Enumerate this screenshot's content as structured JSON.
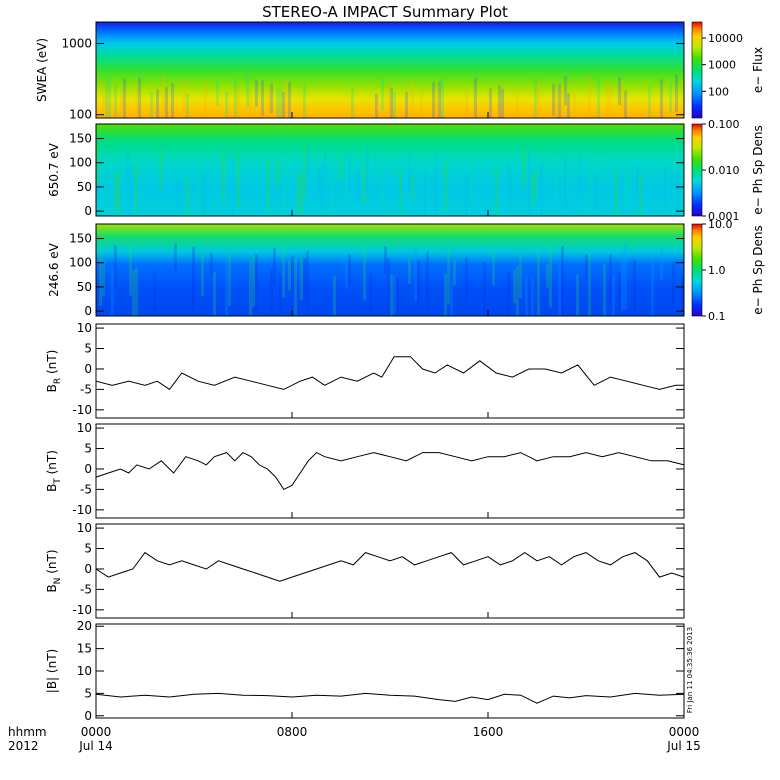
{
  "title": "STEREO-A IMPACT Summary Plot",
  "stamp": "Fri Jan 11 04:35:36 2013",
  "x_axis": {
    "row1_label": "hhmm",
    "row2_label": "2012",
    "ticks": [
      {
        "t": 0,
        "label": "0000",
        "date": "Jul 14"
      },
      {
        "t": 480,
        "label": "0800",
        "date": ""
      },
      {
        "t": 960,
        "label": "1600",
        "date": ""
      },
      {
        "t": 1440,
        "label": "0000",
        "date": "Jul 15"
      }
    ],
    "range_minutes": [
      0,
      1440
    ]
  },
  "colors": {
    "line": "#000000",
    "scale": [
      "#2a00d0",
      "#0030ff",
      "#0090ff",
      "#00d8e0",
      "#00e070",
      "#40e000",
      "#c0e800",
      "#ffd000",
      "#ff8000",
      "#e80000"
    ]
  },
  "spectrograms": [
    {
      "id": "swea",
      "ylabel": "SWEA (eV)",
      "log": true,
      "ylim": [
        90,
        2000
      ],
      "yticks": [
        {
          "v": 100,
          "label": "100"
        },
        {
          "v": 1000,
          "label": "1000"
        }
      ],
      "colorbar": {
        "label": "e− Flux",
        "log": true,
        "range": [
          10,
          40000
        ],
        "ticks": [
          {
            "v": 100,
            "label": "100"
          },
          {
            "v": 1000,
            "label": "1000"
          },
          {
            "v": 10000,
            "label": "10000"
          }
        ]
      }
    },
    {
      "id": "pad650",
      "ylabel": "650.7 eV",
      "log": false,
      "ylim": [
        -10,
        180
      ],
      "yticks": [
        {
          "v": 0,
          "label": "0"
        },
        {
          "v": 50,
          "label": "50"
        },
        {
          "v": 100,
          "label": "100"
        },
        {
          "v": 150,
          "label": "150"
        }
      ],
      "colorbar": {
        "label": "e− Ph Sp Dens",
        "log": true,
        "range": [
          0.001,
          0.1
        ],
        "ticks": [
          {
            "v": 0.001,
            "label": "0.001"
          },
          {
            "v": 0.01,
            "label": "0.010"
          },
          {
            "v": 0.1,
            "label": "0.100"
          }
        ]
      }
    },
    {
      "id": "pad246",
      "ylabel": "246.6 eV",
      "log": false,
      "ylim": [
        -10,
        180
      ],
      "yticks": [
        {
          "v": 0,
          "label": "0"
        },
        {
          "v": 50,
          "label": "50"
        },
        {
          "v": 100,
          "label": "100"
        },
        {
          "v": 150,
          "label": "150"
        }
      ],
      "colorbar": {
        "label": "e− Ph Sp Dens",
        "log": true,
        "range": [
          0.1,
          10
        ],
        "ticks": [
          {
            "v": 0.1,
            "label": "0.1"
          },
          {
            "v": 1,
            "label": "1.0"
          },
          {
            "v": 10,
            "label": "10.0"
          }
        ]
      }
    }
  ],
  "chart_data": [
    {
      "type": "line",
      "id": "br",
      "ylabel": "BR (nT)",
      "ylabel_main": "B",
      "ylabel_sub": "R",
      "ylabel_unit": "(nT)",
      "ylim": [
        -12,
        11
      ],
      "yticks": [
        -10,
        -5,
        0,
        5,
        10
      ],
      "x": [
        0,
        40,
        80,
        120,
        150,
        180,
        210,
        250,
        290,
        340,
        380,
        420,
        460,
        500,
        530,
        560,
        600,
        640,
        680,
        700,
        730,
        770,
        800,
        830,
        860,
        900,
        940,
        980,
        1020,
        1060,
        1100,
        1140,
        1180,
        1220,
        1260,
        1300,
        1340,
        1380,
        1420,
        1440
      ],
      "y": [
        -3,
        -4,
        -3,
        -4,
        -3,
        -5,
        -1,
        -3,
        -4,
        -2,
        -3,
        -4,
        -5,
        -3,
        -2,
        -4,
        -2,
        -3,
        -1,
        -2,
        3,
        3,
        0,
        -1,
        1,
        -1,
        2,
        -1,
        -2,
        0,
        0,
        -1,
        1,
        -4,
        -2,
        -3,
        -4,
        -5,
        -4,
        -4
      ]
    },
    {
      "type": "line",
      "id": "bt",
      "ylabel": "BT (nT)",
      "ylabel_main": "B",
      "ylabel_sub": "T",
      "ylabel_unit": "(nT)",
      "ylim": [
        -12,
        11
      ],
      "yticks": [
        -10,
        -5,
        0,
        5,
        10
      ],
      "x": [
        0,
        30,
        60,
        80,
        100,
        130,
        160,
        190,
        220,
        250,
        270,
        290,
        320,
        340,
        360,
        380,
        400,
        420,
        440,
        460,
        480,
        500,
        520,
        540,
        560,
        600,
        640,
        680,
        720,
        760,
        800,
        840,
        880,
        920,
        960,
        1000,
        1040,
        1080,
        1120,
        1160,
        1200,
        1240,
        1280,
        1320,
        1360,
        1400,
        1440
      ],
      "y": [
        -2,
        -1,
        0,
        -1,
        1,
        0,
        2,
        -1,
        3,
        2,
        1,
        3,
        4,
        2,
        4,
        3,
        1,
        0,
        -2,
        -5,
        -4,
        -1,
        2,
        4,
        3,
        2,
        3,
        4,
        3,
        2,
        4,
        4,
        3,
        2,
        3,
        3,
        4,
        2,
        3,
        3,
        4,
        3,
        4,
        3,
        2,
        2,
        1
      ]
    },
    {
      "type": "line",
      "id": "bn",
      "ylabel": "BN (nT)",
      "ylabel_main": "B",
      "ylabel_sub": "N",
      "ylabel_unit": "(nT)",
      "ylim": [
        -12,
        11
      ],
      "yticks": [
        -10,
        -5,
        0,
        5,
        10
      ],
      "x": [
        0,
        30,
        60,
        90,
        120,
        150,
        180,
        210,
        240,
        270,
        300,
        330,
        360,
        390,
        420,
        450,
        480,
        510,
        540,
        570,
        600,
        630,
        660,
        690,
        720,
        750,
        780,
        810,
        840,
        870,
        900,
        930,
        960,
        990,
        1020,
        1050,
        1080,
        1110,
        1140,
        1170,
        1200,
        1230,
        1260,
        1290,
        1320,
        1350,
        1380,
        1410,
        1440
      ],
      "y": [
        0,
        -2,
        -1,
        0,
        4,
        2,
        1,
        2,
        1,
        0,
        2,
        1,
        0,
        -1,
        -2,
        -3,
        -2,
        -1,
        0,
        1,
        2,
        1,
        4,
        3,
        2,
        3,
        1,
        2,
        3,
        4,
        1,
        2,
        3,
        1,
        2,
        4,
        2,
        3,
        1,
        3,
        4,
        2,
        1,
        3,
        4,
        2,
        -2,
        -1,
        -2
      ]
    },
    {
      "type": "line",
      "id": "bmag",
      "ylabel": "|B| (nT)",
      "ylabel_main": "|B|",
      "ylabel_sub": "",
      "ylabel_unit": "(nT)",
      "ylim": [
        -0.5,
        20.5
      ],
      "yticks": [
        0,
        5,
        10,
        15,
        20
      ],
      "x": [
        0,
        60,
        120,
        180,
        240,
        300,
        360,
        420,
        480,
        540,
        600,
        660,
        720,
        780,
        840,
        880,
        920,
        960,
        1000,
        1040,
        1080,
        1120,
        1160,
        1200,
        1260,
        1320,
        1380,
        1440
      ],
      "y": [
        4.8,
        4.2,
        4.6,
        4.2,
        4.8,
        5.0,
        4.6,
        4.5,
        4.2,
        4.6,
        4.4,
        5.0,
        4.6,
        4.4,
        3.6,
        3.2,
        4.2,
        3.6,
        4.8,
        4.6,
        2.8,
        4.4,
        4.0,
        4.5,
        4.2,
        5.0,
        4.6,
        4.8
      ]
    }
  ]
}
